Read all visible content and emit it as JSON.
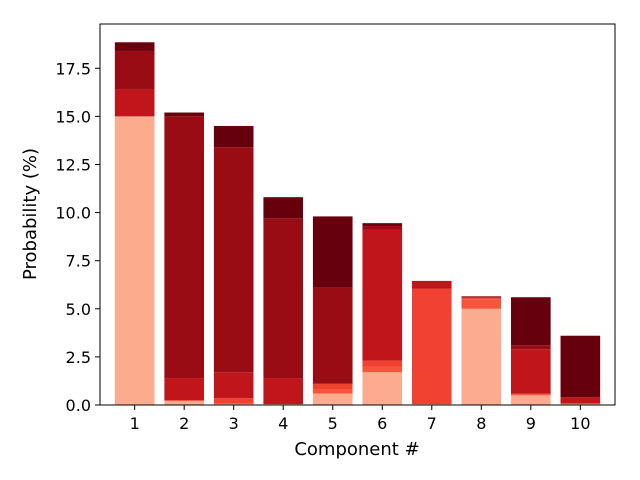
{
  "chart_data": {
    "type": "bar",
    "stacked": true,
    "xlabel": "Component #",
    "ylabel": "Probability (%)",
    "categories": [
      "1",
      "2",
      "3",
      "4",
      "5",
      "6",
      "7",
      "8",
      "9",
      "10"
    ],
    "ylim": [
      0,
      19.8
    ],
    "yticks": [
      0.0,
      2.5,
      5.0,
      7.5,
      10.0,
      12.5,
      15.0,
      17.5
    ],
    "ytick_labels": [
      "0.0",
      "2.5",
      "5.0",
      "7.5",
      "10.0",
      "12.5",
      "15.0",
      "17.5"
    ],
    "grid": false,
    "legend": "none",
    "colors": [
      "#fcab8f",
      "#f6553c",
      "#f14130",
      "#c0151b",
      "#9a0c14",
      "#67000d"
    ],
    "series": [
      {
        "values": [
          15.0,
          0.2,
          0.05,
          0.05,
          0.6,
          1.7,
          0.05,
          5.0,
          0.5,
          0.05
        ]
      },
      {
        "values": [
          0.0,
          0.05,
          0.05,
          0.0,
          0.2,
          0.3,
          0.0,
          0.5,
          0.05,
          0.0
        ]
      },
      {
        "values": [
          0.0,
          0.0,
          0.25,
          0.0,
          0.3,
          0.3,
          6.0,
          0.05,
          0.05,
          0.05
        ]
      },
      {
        "values": [
          1.4,
          1.15,
          1.35,
          1.35,
          0.0,
          6.8,
          0.4,
          0.05,
          2.3,
          0.3
        ]
      },
      {
        "values": [
          2.0,
          13.6,
          11.7,
          8.3,
          5.0,
          0.2,
          0.0,
          0.05,
          0.2,
          0.0
        ]
      },
      {
        "values": [
          0.45,
          0.2,
          1.1,
          1.1,
          3.7,
          0.15,
          0.0,
          0.0,
          2.5,
          3.2
        ]
      }
    ]
  }
}
